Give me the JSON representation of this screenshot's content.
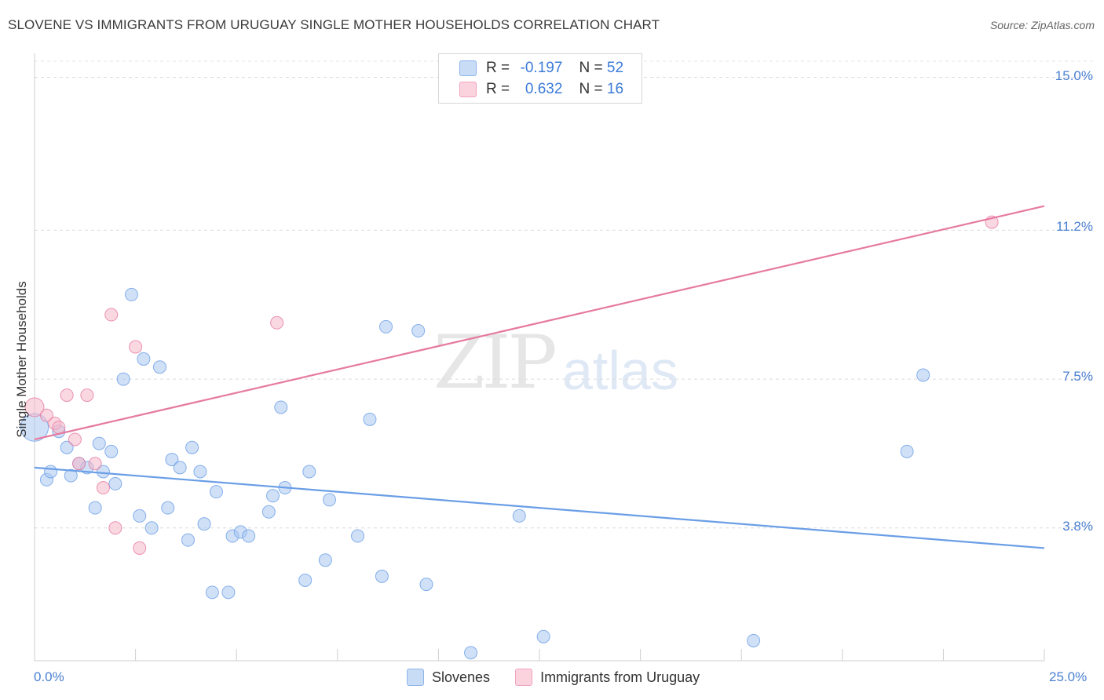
{
  "title": "SLOVENE VS IMMIGRANTS FROM URUGUAY SINGLE MOTHER HOUSEHOLDS CORRELATION CHART",
  "source": "Source: ZipAtlas.com",
  "watermark": {
    "zip": "ZIP",
    "atlas": "atlas"
  },
  "legend_top": [
    {
      "r_label": "R =",
      "r_value": "-0.197",
      "n_label": "N =",
      "n_value": "52",
      "color": "#a9c8f0"
    },
    {
      "r_label": "R =",
      "r_value": "0.632",
      "n_label": "N =",
      "n_value": "16",
      "color": "#f6b8cb"
    }
  ],
  "legend_bottom": [
    {
      "label": "Slovenes",
      "color": "#a9c8f0"
    },
    {
      "label": "Immigrants from Uruguay",
      "color": "#f6b8cb"
    }
  ],
  "chart_data": {
    "type": "scatter",
    "title": "SLOVENE VS IMMIGRANTS FROM URUGUAY SINGLE MOTHER HOUSEHOLDS CORRELATION CHART",
    "xlabel": "",
    "ylabel": "Single Mother Households",
    "xlim": [
      0,
      25
    ],
    "ylim": [
      0.5,
      15.4
    ],
    "x_tick_labels": [
      "0.0%",
      "25.0%"
    ],
    "y_ticks": [
      3.8,
      7.5,
      11.2,
      15.0
    ],
    "y_tick_labels": [
      "3.8%",
      "7.5%",
      "11.2%",
      "15.0%"
    ],
    "grid": "horizontal dashed",
    "legend_placement": "top-center",
    "series": [
      {
        "name": "Slovenes",
        "color": "#6a9ee6",
        "fill": "#a9c8f0",
        "trend": {
          "x0": 0,
          "y0": 5.3,
          "x1": 25,
          "y1": 3.3
        },
        "points": [
          [
            0.0,
            6.3,
            2.2
          ],
          [
            0.3,
            5.0,
            1
          ],
          [
            0.4,
            5.2,
            1
          ],
          [
            0.6,
            6.2,
            1
          ],
          [
            0.8,
            5.8,
            1
          ],
          [
            0.9,
            5.1,
            1
          ],
          [
            1.1,
            5.4,
            1
          ],
          [
            1.3,
            5.3,
            1
          ],
          [
            1.5,
            4.3,
            1
          ],
          [
            1.6,
            5.9,
            1
          ],
          [
            1.7,
            5.2,
            1
          ],
          [
            1.9,
            5.7,
            1
          ],
          [
            2.0,
            4.9,
            1
          ],
          [
            2.2,
            7.5,
            1
          ],
          [
            2.4,
            9.6,
            1
          ],
          [
            2.6,
            4.1,
            1
          ],
          [
            2.7,
            8.0,
            1
          ],
          [
            2.9,
            3.8,
            1
          ],
          [
            3.1,
            7.8,
            1
          ],
          [
            3.3,
            4.3,
            1
          ],
          [
            3.4,
            5.5,
            1
          ],
          [
            3.6,
            5.3,
            1
          ],
          [
            3.8,
            3.5,
            1
          ],
          [
            3.9,
            5.8,
            1
          ],
          [
            4.1,
            5.2,
            1
          ],
          [
            4.2,
            3.9,
            1
          ],
          [
            4.4,
            2.2,
            1
          ],
          [
            4.5,
            4.7,
            1
          ],
          [
            4.8,
            2.2,
            1
          ],
          [
            4.9,
            3.6,
            1
          ],
          [
            5.1,
            3.7,
            1
          ],
          [
            5.3,
            3.6,
            1
          ],
          [
            5.8,
            4.2,
            1
          ],
          [
            5.9,
            4.6,
            1
          ],
          [
            6.1,
            6.8,
            1
          ],
          [
            6.2,
            4.8,
            1
          ],
          [
            6.7,
            2.5,
            1
          ],
          [
            6.8,
            5.2,
            1
          ],
          [
            7.2,
            3.0,
            1
          ],
          [
            7.3,
            4.5,
            1
          ],
          [
            8.0,
            3.6,
            1
          ],
          [
            8.3,
            6.5,
            1
          ],
          [
            8.6,
            2.6,
            1
          ],
          [
            8.7,
            8.8,
            1
          ],
          [
            9.5,
            8.7,
            1
          ],
          [
            9.7,
            2.4,
            1
          ],
          [
            10.8,
            0.7,
            1
          ],
          [
            12.0,
            4.1,
            1
          ],
          [
            12.6,
            1.1,
            1
          ],
          [
            17.8,
            1.0,
            1
          ],
          [
            21.6,
            5.7,
            1
          ],
          [
            22.0,
            7.6,
            1
          ]
        ]
      },
      {
        "name": "Immigrants from Uruguay",
        "color": "#e67aa0",
        "fill": "#f6b8cb",
        "trend": {
          "x0": 0,
          "y0": 6.0,
          "x1": 25,
          "y1": 11.8
        },
        "points": [
          [
            0.0,
            6.8,
            1.5
          ],
          [
            0.3,
            6.6,
            1
          ],
          [
            0.5,
            6.4,
            1
          ],
          [
            0.6,
            6.3,
            1
          ],
          [
            0.8,
            7.1,
            1
          ],
          [
            1.0,
            6.0,
            1
          ],
          [
            1.1,
            5.4,
            1
          ],
          [
            1.3,
            7.1,
            1
          ],
          [
            1.5,
            5.4,
            1
          ],
          [
            1.7,
            4.8,
            1
          ],
          [
            1.9,
            9.1,
            1
          ],
          [
            2.0,
            3.8,
            1
          ],
          [
            2.5,
            8.3,
            1
          ],
          [
            2.6,
            3.3,
            1
          ],
          [
            6.0,
            8.9,
            1
          ],
          [
            23.7,
            11.4,
            1
          ]
        ]
      }
    ]
  }
}
